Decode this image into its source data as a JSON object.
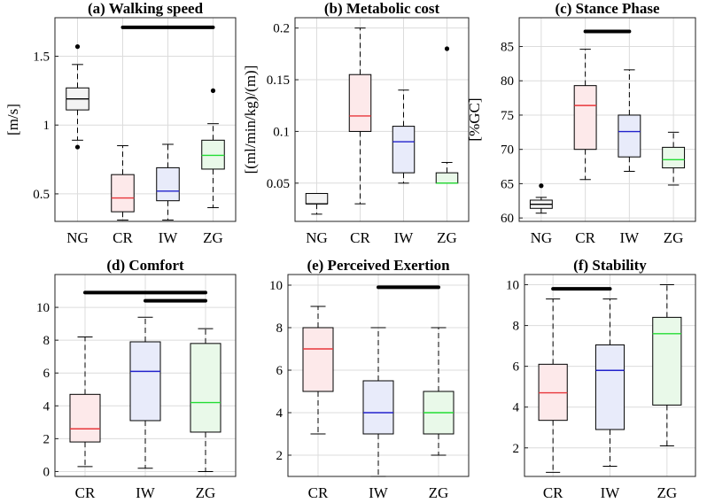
{
  "colors": {
    "NG": {
      "edge": "#000000",
      "fill": "#f4f4f4",
      "median": "#000000"
    },
    "CR": {
      "edge": "#000000",
      "fill": "#fde9ea",
      "median": "#e8363a"
    },
    "IW": {
      "edge": "#000000",
      "fill": "#e8ebfa",
      "median": "#2222cc"
    },
    "ZG": {
      "edge": "#000000",
      "fill": "#e9f9e9",
      "median": "#22dd33"
    }
  },
  "chart_data": [
    {
      "id": "a",
      "type": "box",
      "title": "(a) Walking speed",
      "ylabel": "[m/s]",
      "ylim": [
        0.3,
        1.78
      ],
      "yticks": [
        0.5,
        1,
        1.5
      ],
      "ytick_labels": [
        "0.5",
        "1",
        "1.5"
      ],
      "categories": [
        "NG",
        "CR",
        "IW",
        "ZG"
      ],
      "boxes": [
        {
          "cat": "NG",
          "whislo": 0.89,
          "q1": 1.11,
          "med": 1.19,
          "q3": 1.27,
          "whishi": 1.44,
          "fliers": [
            1.57,
            0.84
          ]
        },
        {
          "cat": "CR",
          "whislo": 0.31,
          "q1": 0.37,
          "med": 0.47,
          "q3": 0.64,
          "whishi": 0.85,
          "fliers": []
        },
        {
          "cat": "IW",
          "whislo": 0.31,
          "q1": 0.45,
          "med": 0.52,
          "q3": 0.69,
          "whishi": 0.86,
          "fliers": []
        },
        {
          "cat": "ZG",
          "whislo": 0.4,
          "q1": 0.68,
          "med": 0.78,
          "q3": 0.89,
          "whishi": 1.01,
          "fliers": [
            1.25
          ]
        }
      ],
      "sig": [
        {
          "from": "CR",
          "to": "ZG",
          "y": 1.71
        }
      ]
    },
    {
      "id": "b",
      "type": "box",
      "title": "(b) Metabolic cost",
      "ylabel": "[(ml/min/kg)/(m)]",
      "ylim": [
        0.013,
        0.21
      ],
      "yticks": [
        0.05,
        0.1,
        0.15,
        0.2
      ],
      "ytick_labels": [
        "0.05",
        "0.1",
        "0.15",
        "0.2"
      ],
      "categories": [
        "NG",
        "CR",
        "IW",
        "ZG"
      ],
      "boxes": [
        {
          "cat": "NG",
          "whislo": 0.02,
          "q1": 0.03,
          "med": 0.03,
          "q3": 0.04,
          "whishi": 0.04,
          "fliers": []
        },
        {
          "cat": "CR",
          "whislo": 0.03,
          "q1": 0.1,
          "med": 0.115,
          "q3": 0.155,
          "whishi": 0.2,
          "fliers": []
        },
        {
          "cat": "IW",
          "whislo": 0.05,
          "q1": 0.06,
          "med": 0.09,
          "q3": 0.105,
          "whishi": 0.14,
          "fliers": []
        },
        {
          "cat": "ZG",
          "whislo": 0.05,
          "q1": 0.05,
          "med": 0.05,
          "q3": 0.06,
          "whishi": 0.07,
          "fliers": [
            0.18
          ]
        }
      ],
      "sig": []
    },
    {
      "id": "c",
      "type": "box",
      "title": "(c) Stance Phase",
      "ylabel": "[%GC]",
      "ylim": [
        59.5,
        89.2
      ],
      "yticks": [
        60,
        65,
        70,
        75,
        80,
        85
      ],
      "ytick_labels": [
        "60",
        "65",
        "70",
        "75",
        "80",
        "85"
      ],
      "categories": [
        "NG",
        "CR",
        "IW",
        "ZG"
      ],
      "boxes": [
        {
          "cat": "NG",
          "whislo": 60.7,
          "q1": 61.4,
          "med": 62.0,
          "q3": 62.6,
          "whishi": 63.0,
          "fliers": [
            64.7
          ]
        },
        {
          "cat": "CR",
          "whislo": 65.6,
          "q1": 70.0,
          "med": 76.4,
          "q3": 79.3,
          "whishi": 84.6,
          "fliers": []
        },
        {
          "cat": "IW",
          "whislo": 66.8,
          "q1": 68.9,
          "med": 72.6,
          "q3": 75.0,
          "whishi": 81.6,
          "fliers": []
        },
        {
          "cat": "ZG",
          "whislo": 64.8,
          "q1": 67.3,
          "med": 68.5,
          "q3": 70.3,
          "whishi": 72.5,
          "fliers": []
        }
      ],
      "sig": [
        {
          "from": "CR",
          "to": "IW",
          "y": 87.2
        }
      ]
    },
    {
      "id": "d",
      "type": "box",
      "title": "(d) Comfort",
      "ylabel": "",
      "ylim": [
        -0.3,
        12.0
      ],
      "yticks": [
        0,
        2,
        4,
        6,
        8,
        10
      ],
      "ytick_labels": [
        "0",
        "2",
        "4",
        "6",
        "8",
        "10"
      ],
      "categories": [
        "CR",
        "IW",
        "ZG"
      ],
      "boxes": [
        {
          "cat": "CR",
          "whislo": 0.3,
          "q1": 1.8,
          "med": 2.6,
          "q3": 4.7,
          "whishi": 8.2,
          "fliers": []
        },
        {
          "cat": "IW",
          "whislo": 0.2,
          "q1": 3.1,
          "med": 6.1,
          "q3": 7.9,
          "whishi": 9.4,
          "fliers": []
        },
        {
          "cat": "ZG",
          "whislo": 0.0,
          "q1": 2.4,
          "med": 4.2,
          "q3": 7.8,
          "whishi": 8.7,
          "fliers": []
        }
      ],
      "sig": [
        {
          "from": "CR",
          "to": "ZG",
          "y": 10.9
        },
        {
          "from": "IW",
          "to": "ZG",
          "y": 10.4
        }
      ]
    },
    {
      "id": "e",
      "type": "box",
      "title": "(e) Perceived Exertion",
      "ylabel": "",
      "ylim": [
        1.0,
        10.5
      ],
      "yticks": [
        2,
        4,
        6,
        8,
        10
      ],
      "ytick_labels": [
        "2",
        "4",
        "6",
        "8",
        "10"
      ],
      "categories": [
        "CR",
        "IW",
        "ZG"
      ],
      "boxes": [
        {
          "cat": "CR",
          "whislo": 3.0,
          "q1": 5.0,
          "med": 7.0,
          "q3": 8.0,
          "whishi": 9.0,
          "fliers": []
        },
        {
          "cat": "IW",
          "whislo": 1.0,
          "q1": 3.0,
          "med": 4.0,
          "q3": 5.5,
          "whishi": 8.0,
          "fliers": []
        },
        {
          "cat": "ZG",
          "whislo": 2.0,
          "q1": 3.0,
          "med": 4.0,
          "q3": 5.0,
          "whishi": 8.0,
          "fliers": []
        }
      ],
      "sig": [
        {
          "from": "IW",
          "to": "ZG",
          "y": 9.9
        }
      ]
    },
    {
      "id": "f",
      "type": "box",
      "title": "(f) Stability",
      "ylabel": "",
      "ylim": [
        0.6,
        10.5
      ],
      "yticks": [
        2,
        4,
        6,
        8,
        10
      ],
      "ytick_labels": [
        "2",
        "4",
        "6",
        "8",
        "10"
      ],
      "categories": [
        "CR",
        "IW",
        "ZG"
      ],
      "boxes": [
        {
          "cat": "CR",
          "whislo": 0.8,
          "q1": 3.35,
          "med": 4.7,
          "q3": 6.1,
          "whishi": 9.3,
          "fliers": []
        },
        {
          "cat": "IW",
          "whislo": 1.1,
          "q1": 2.9,
          "med": 5.8,
          "q3": 7.05,
          "whishi": 9.3,
          "fliers": []
        },
        {
          "cat": "ZG",
          "whislo": 2.1,
          "q1": 4.1,
          "med": 7.6,
          "q3": 8.4,
          "whishi": 10.0,
          "fliers": []
        }
      ],
      "sig": [
        {
          "from": "CR",
          "to": "IW",
          "y": 9.8
        }
      ]
    }
  ]
}
